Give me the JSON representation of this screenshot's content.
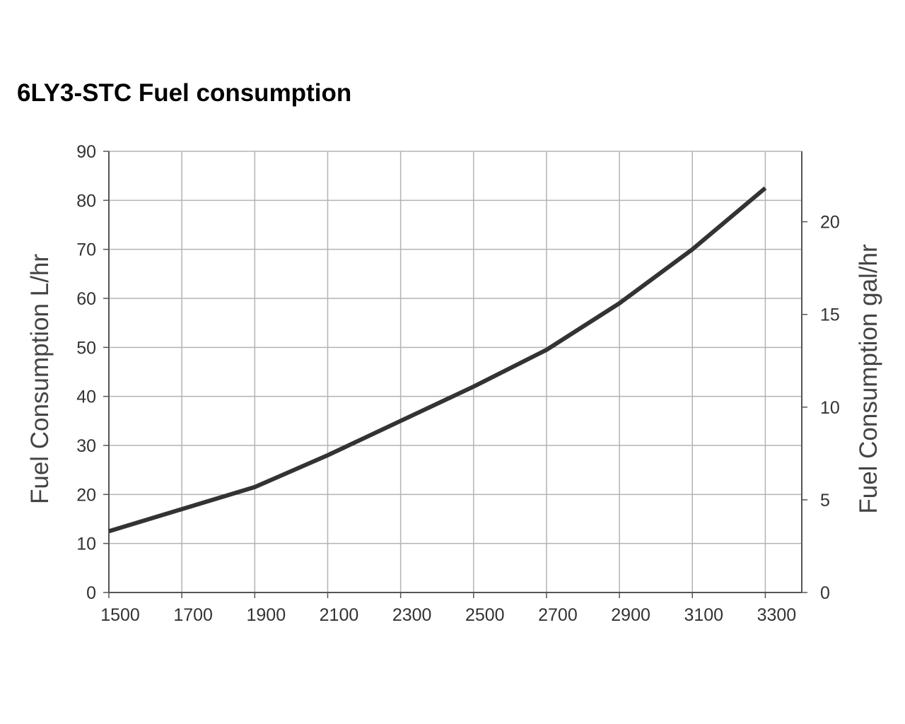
{
  "chart_data": {
    "type": "line",
    "title": "6LY3-STC Fuel consumption",
    "xlabel": "",
    "ylabel": "Fuel Consumption L/hr",
    "ylabel_right": "Fuel Consumption gal/hr",
    "xlim": [
      1500,
      3400
    ],
    "ylim": [
      0,
      90
    ],
    "ylim_right": [
      0,
      23.8
    ],
    "x_ticks": [
      "1500",
      "1700",
      "1900",
      "2100",
      "2300",
      "2500",
      "2700",
      "2900",
      "3100",
      "3300"
    ],
    "y_ticks": [
      "0",
      "10",
      "20",
      "30",
      "40",
      "50",
      "60",
      "70",
      "80",
      "90"
    ],
    "y_ticks_right": [
      "0",
      "5",
      "10",
      "15",
      "20"
    ],
    "grid": true,
    "series": [
      {
        "name": "Fuel consumption",
        "color": "#333333",
        "x": [
          1500,
          1700,
          1900,
          2100,
          2300,
          2500,
          2700,
          2900,
          3100,
          3300
        ],
        "y": [
          12.5,
          17,
          21.5,
          28,
          35,
          42,
          49.5,
          59,
          70,
          82.5
        ]
      }
    ]
  }
}
